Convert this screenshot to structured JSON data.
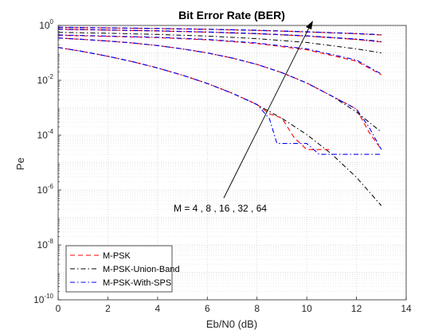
{
  "chart_data": {
    "type": "line",
    "title": "Bit Error Rate (BER)",
    "xlabel": "Eb/N0 (dB)",
    "ylabel": "Pe",
    "xlim": [
      0,
      14
    ],
    "ylim_log10": [
      -10,
      0
    ],
    "y_scale": "log",
    "grid": "major and minor",
    "legend_position": "bottom-left",
    "x_ticks": [
      0,
      2,
      4,
      6,
      8,
      10,
      12,
      14
    ],
    "y_ticks_exponents": [
      -10,
      -8,
      -6,
      -4,
      -2,
      0
    ],
    "y_tick_base": "10",
    "annotation": {
      "text": "M = 4 , 8 , 16 , 32 , 64"
    },
    "legend": [
      {
        "name": "M-PSK",
        "color": "#ff0000",
        "dash": "dashed"
      },
      {
        "name": "M-PSK-Union-Band",
        "color": "#000000",
        "dash": "dashdot"
      },
      {
        "name": "M-PSK-With-SPS",
        "color": "#0000ff",
        "dash": "dashdot"
      }
    ],
    "series": [
      {
        "group": "union",
        "M": 4,
        "x": [
          0,
          1,
          2,
          3,
          4,
          5,
          6,
          7,
          8,
          9,
          10,
          11,
          12,
          13
        ],
        "y": [
          0.158,
          0.112,
          0.0751,
          0.0477,
          0.0282,
          0.0154,
          0.00763,
          0.00337,
          0.00129,
          0.000413,
          0.000106,
          2.06e-05,
          2.9e-06,
          2.7e-07
        ]
      },
      {
        "group": "union",
        "M": 8,
        "x": [
          0,
          1,
          2,
          3,
          4,
          5,
          6,
          7,
          8,
          9,
          10,
          11,
          12,
          13
        ],
        "y": [
          0.35,
          0.31,
          0.27,
          0.23,
          0.185,
          0.14,
          0.1,
          0.065,
          0.038,
          0.019,
          0.008,
          0.0027,
          0.0007,
          0.00013
        ]
      },
      {
        "group": "union",
        "M": 16,
        "x": [
          0,
          2,
          4,
          6,
          8,
          10,
          12,
          13
        ],
        "y": [
          0.56,
          0.52,
          0.47,
          0.41,
          0.33,
          0.24,
          0.14,
          0.1
        ]
      },
      {
        "group": "union",
        "M": 32,
        "x": [
          0,
          2,
          4,
          6,
          8,
          10,
          12,
          13
        ],
        "y": [
          0.72,
          0.68,
          0.63,
          0.57,
          0.5,
          0.41,
          0.31,
          0.25
        ]
      },
      {
        "group": "union",
        "M": 64,
        "x": [
          0,
          2,
          4,
          6,
          8,
          10,
          12,
          13
        ],
        "y": [
          0.84,
          0.81,
          0.77,
          0.72,
          0.66,
          0.58,
          0.5,
          0.45
        ]
      },
      {
        "group": "sim",
        "M": 4,
        "x": [
          0,
          1,
          2,
          3,
          4,
          5,
          6,
          7,
          8,
          8.5,
          9,
          9.5,
          10,
          10.5,
          11
        ],
        "y": [
          0.158,
          0.112,
          0.0751,
          0.0477,
          0.0282,
          0.0154,
          0.0077,
          0.0034,
          0.00132,
          0.0006,
          0.00042,
          8e-05,
          3e-05,
          3e-05,
          3e-05
        ]
      },
      {
        "group": "sim",
        "M": 8,
        "x": [
          0,
          1,
          2,
          3,
          4,
          5,
          6,
          7,
          8,
          9,
          10,
          11,
          12,
          12.5,
          13
        ],
        "y": [
          0.35,
          0.31,
          0.27,
          0.23,
          0.185,
          0.14,
          0.1,
          0.065,
          0.038,
          0.019,
          0.008,
          0.0027,
          0.0009,
          0.00013,
          3e-05
        ]
      },
      {
        "group": "sim",
        "M": 16,
        "x": [
          0,
          2,
          4,
          6,
          8,
          10,
          12,
          13
        ],
        "y": [
          0.44,
          0.4,
          0.36,
          0.3,
          0.22,
          0.13,
          0.05,
          0.016
        ]
      },
      {
        "group": "sim",
        "M": 32,
        "x": [
          0,
          2,
          4,
          6,
          8,
          10,
          12,
          13
        ],
        "y": [
          0.72,
          0.68,
          0.63,
          0.57,
          0.5,
          0.41,
          0.31,
          0.25
        ]
      },
      {
        "group": "sim",
        "M": 64,
        "x": [
          0,
          2,
          4,
          6,
          8,
          10,
          12,
          13
        ],
        "y": [
          0.84,
          0.81,
          0.77,
          0.72,
          0.66,
          0.58,
          0.5,
          0.45
        ]
      },
      {
        "group": "sps",
        "M": 4,
        "x": [
          0,
          1,
          2,
          3,
          4,
          5,
          6,
          7,
          8,
          8.5,
          8.8,
          9,
          9.5,
          10,
          10.5,
          11,
          12,
          13
        ],
        "y": [
          0.158,
          0.112,
          0.0751,
          0.0477,
          0.0282,
          0.0154,
          0.0077,
          0.0034,
          0.00132,
          0.0004,
          5e-05,
          5e-05,
          5e-05,
          5e-05,
          2e-05,
          2e-05,
          2e-05,
          2e-05
        ]
      },
      {
        "group": "sps",
        "M": 8,
        "x": [
          0,
          1,
          2,
          3,
          4,
          5,
          6,
          7,
          8,
          9,
          10,
          11,
          12,
          12.5,
          13
        ],
        "y": [
          0.35,
          0.31,
          0.27,
          0.23,
          0.185,
          0.14,
          0.1,
          0.065,
          0.038,
          0.019,
          0.008,
          0.0027,
          0.0009,
          0.0002,
          3e-05
        ]
      },
      {
        "group": "sps",
        "M": 16,
        "x": [
          0,
          2,
          4,
          6,
          8,
          10,
          12,
          13
        ],
        "y": [
          0.45,
          0.41,
          0.37,
          0.31,
          0.23,
          0.14,
          0.055,
          0.017
        ]
      },
      {
        "group": "sps",
        "M": 32,
        "x": [
          0,
          2,
          4,
          6,
          8,
          10,
          12,
          13
        ],
        "y": [
          0.73,
          0.69,
          0.64,
          0.58,
          0.51,
          0.42,
          0.32,
          0.26
        ]
      },
      {
        "group": "sps",
        "M": 64,
        "x": [
          0,
          2,
          4,
          6,
          8,
          10,
          12,
          13
        ],
        "y": [
          0.86,
          0.82,
          0.78,
          0.73,
          0.67,
          0.59,
          0.51,
          0.46
        ]
      }
    ]
  }
}
